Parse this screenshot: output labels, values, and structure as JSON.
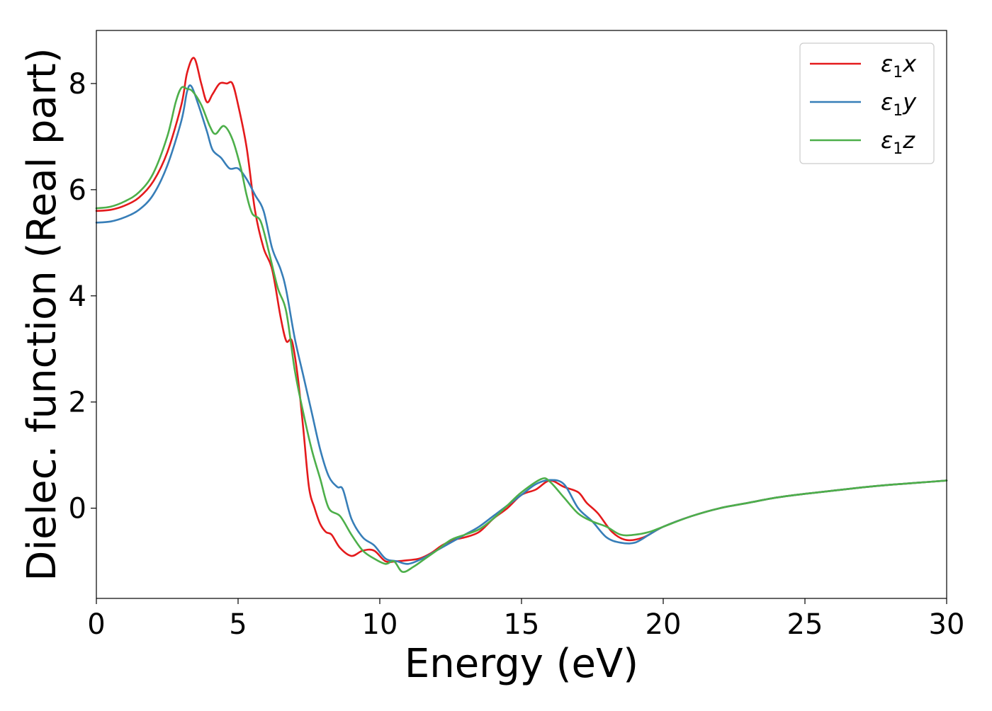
{
  "chart_data": {
    "type": "line",
    "title": "",
    "xlabel": "Energy (eV)",
    "ylabel": "Dielec. function (Real part)",
    "xlim": [
      0,
      30
    ],
    "ylim": [
      -1.7,
      9.0
    ],
    "xticks": [
      0,
      5,
      10,
      15,
      20,
      25,
      30
    ],
    "yticks": [
      0,
      2,
      4,
      6,
      8
    ],
    "xtick_labels": [
      "0",
      "5",
      "10",
      "15",
      "20",
      "25",
      "30"
    ],
    "ytick_labels": [
      "0",
      "2",
      "4",
      "6",
      "8"
    ],
    "grid": false,
    "legend_position": "top-right",
    "series": [
      {
        "name": "ε₁x",
        "legend_base": "ε",
        "legend_sub": "1",
        "legend_var": "x",
        "color": "#e41a1c",
        "points": [
          [
            0,
            5.6
          ],
          [
            0.5,
            5.62
          ],
          [
            1,
            5.7
          ],
          [
            1.5,
            5.85
          ],
          [
            2,
            6.15
          ],
          [
            2.5,
            6.7
          ],
          [
            3.0,
            7.6
          ],
          [
            3.2,
            8.2
          ],
          [
            3.45,
            8.48
          ],
          [
            3.7,
            8.0
          ],
          [
            3.9,
            7.65
          ],
          [
            4.1,
            7.8
          ],
          [
            4.35,
            8.0
          ],
          [
            4.6,
            8.0
          ],
          [
            4.8,
            8.0
          ],
          [
            5.0,
            7.6
          ],
          [
            5.3,
            6.8
          ],
          [
            5.6,
            5.6
          ],
          [
            5.9,
            4.9
          ],
          [
            6.2,
            4.5
          ],
          [
            6.5,
            3.6
          ],
          [
            6.7,
            3.15
          ],
          [
            6.9,
            3.15
          ],
          [
            7.1,
            2.5
          ],
          [
            7.3,
            1.5
          ],
          [
            7.5,
            0.4
          ],
          [
            7.7,
            0.0
          ],
          [
            7.9,
            -0.3
          ],
          [
            8.1,
            -0.45
          ],
          [
            8.3,
            -0.5
          ],
          [
            8.6,
            -0.75
          ],
          [
            9.0,
            -0.9
          ],
          [
            9.4,
            -0.8
          ],
          [
            9.8,
            -0.8
          ],
          [
            10.2,
            -1.0
          ],
          [
            10.6,
            -1.0
          ],
          [
            11.0,
            -0.98
          ],
          [
            11.4,
            -0.95
          ],
          [
            11.8,
            -0.85
          ],
          [
            12.2,
            -0.7
          ],
          [
            12.6,
            -0.6
          ],
          [
            13.0,
            -0.55
          ],
          [
            13.5,
            -0.45
          ],
          [
            14.0,
            -0.2
          ],
          [
            14.5,
            0.0
          ],
          [
            15.0,
            0.25
          ],
          [
            15.5,
            0.35
          ],
          [
            16.0,
            0.52
          ],
          [
            16.5,
            0.4
          ],
          [
            17.0,
            0.3
          ],
          [
            17.3,
            0.1
          ],
          [
            17.7,
            -0.1
          ],
          [
            18.2,
            -0.45
          ],
          [
            18.7,
            -0.6
          ],
          [
            19.3,
            -0.55
          ],
          [
            20.0,
            -0.35
          ],
          [
            21.0,
            -0.15
          ],
          [
            22.0,
            0.0
          ],
          [
            23.0,
            0.1
          ],
          [
            24.0,
            0.2
          ],
          [
            25.0,
            0.27
          ],
          [
            26.0,
            0.33
          ],
          [
            27.0,
            0.39
          ],
          [
            28.0,
            0.44
          ],
          [
            29.0,
            0.48
          ],
          [
            30.0,
            0.52
          ]
        ]
      },
      {
        "name": "ε₁y",
        "legend_base": "ε",
        "legend_sub": "1",
        "legend_var": "y",
        "color": "#377eb8",
        "points": [
          [
            0,
            5.38
          ],
          [
            0.5,
            5.4
          ],
          [
            1,
            5.48
          ],
          [
            1.5,
            5.62
          ],
          [
            2,
            5.9
          ],
          [
            2.5,
            6.45
          ],
          [
            3.0,
            7.3
          ],
          [
            3.2,
            7.85
          ],
          [
            3.35,
            7.95
          ],
          [
            3.6,
            7.6
          ],
          [
            3.9,
            7.1
          ],
          [
            4.1,
            6.75
          ],
          [
            4.4,
            6.6
          ],
          [
            4.7,
            6.4
          ],
          [
            5.0,
            6.4
          ],
          [
            5.3,
            6.2
          ],
          [
            5.6,
            5.9
          ],
          [
            5.9,
            5.6
          ],
          [
            6.2,
            4.9
          ],
          [
            6.5,
            4.5
          ],
          [
            6.7,
            4.1
          ],
          [
            7.0,
            3.2
          ],
          [
            7.3,
            2.5
          ],
          [
            7.6,
            1.8
          ],
          [
            7.9,
            1.1
          ],
          [
            8.2,
            0.6
          ],
          [
            8.5,
            0.4
          ],
          [
            8.7,
            0.35
          ],
          [
            9.0,
            -0.2
          ],
          [
            9.4,
            -0.55
          ],
          [
            9.8,
            -0.7
          ],
          [
            10.2,
            -0.95
          ],
          [
            10.6,
            -1.0
          ],
          [
            11.0,
            -1.05
          ],
          [
            11.5,
            -0.95
          ],
          [
            12.0,
            -0.8
          ],
          [
            12.5,
            -0.65
          ],
          [
            13.0,
            -0.5
          ],
          [
            13.5,
            -0.35
          ],
          [
            14.0,
            -0.15
          ],
          [
            14.5,
            0.05
          ],
          [
            15.0,
            0.25
          ],
          [
            15.5,
            0.45
          ],
          [
            16.0,
            0.53
          ],
          [
            16.5,
            0.45
          ],
          [
            17.0,
            0.0
          ],
          [
            17.5,
            -0.25
          ],
          [
            18.0,
            -0.55
          ],
          [
            18.5,
            -0.65
          ],
          [
            19.0,
            -0.65
          ],
          [
            19.5,
            -0.5
          ],
          [
            20.0,
            -0.35
          ],
          [
            21.0,
            -0.15
          ],
          [
            22.0,
            0.0
          ],
          [
            23.0,
            0.1
          ],
          [
            24.0,
            0.2
          ],
          [
            25.0,
            0.27
          ],
          [
            26.0,
            0.33
          ],
          [
            27.0,
            0.39
          ],
          [
            28.0,
            0.44
          ],
          [
            29.0,
            0.48
          ],
          [
            30.0,
            0.52
          ]
        ]
      },
      {
        "name": "ε₁z",
        "legend_base": "ε",
        "legend_sub": "1",
        "legend_var": "z",
        "color": "#4daf4a",
        "points": [
          [
            0,
            5.65
          ],
          [
            0.5,
            5.68
          ],
          [
            1,
            5.78
          ],
          [
            1.5,
            5.95
          ],
          [
            2,
            6.3
          ],
          [
            2.5,
            7.0
          ],
          [
            2.8,
            7.65
          ],
          [
            3.0,
            7.92
          ],
          [
            3.2,
            7.9
          ],
          [
            3.4,
            7.85
          ],
          [
            3.7,
            7.6
          ],
          [
            4.0,
            7.2
          ],
          [
            4.2,
            7.05
          ],
          [
            4.5,
            7.2
          ],
          [
            4.8,
            6.95
          ],
          [
            5.1,
            6.4
          ],
          [
            5.3,
            5.9
          ],
          [
            5.5,
            5.55
          ],
          [
            5.8,
            5.4
          ],
          [
            6.1,
            4.8
          ],
          [
            6.4,
            4.15
          ],
          [
            6.7,
            3.7
          ],
          [
            7.0,
            2.6
          ],
          [
            7.3,
            1.8
          ],
          [
            7.6,
            1.1
          ],
          [
            7.9,
            0.55
          ],
          [
            8.2,
            0.0
          ],
          [
            8.6,
            -0.15
          ],
          [
            9.0,
            -0.5
          ],
          [
            9.4,
            -0.8
          ],
          [
            9.8,
            -0.95
          ],
          [
            10.2,
            -1.05
          ],
          [
            10.5,
            -1.0
          ],
          [
            10.8,
            -1.2
          ],
          [
            11.2,
            -1.1
          ],
          [
            11.6,
            -0.95
          ],
          [
            12.0,
            -0.8
          ],
          [
            12.5,
            -0.6
          ],
          [
            13.0,
            -0.5
          ],
          [
            13.5,
            -0.4
          ],
          [
            14.0,
            -0.2
          ],
          [
            14.5,
            0.05
          ],
          [
            15.0,
            0.3
          ],
          [
            15.7,
            0.55
          ],
          [
            16.0,
            0.5
          ],
          [
            16.5,
            0.2
          ],
          [
            17.0,
            -0.1
          ],
          [
            17.5,
            -0.25
          ],
          [
            18.0,
            -0.35
          ],
          [
            18.5,
            -0.5
          ],
          [
            19.0,
            -0.5
          ],
          [
            19.5,
            -0.45
          ],
          [
            20.0,
            -0.35
          ],
          [
            21.0,
            -0.15
          ],
          [
            22.0,
            0.0
          ],
          [
            23.0,
            0.1
          ],
          [
            24.0,
            0.2
          ],
          [
            25.0,
            0.27
          ],
          [
            26.0,
            0.33
          ],
          [
            27.0,
            0.39
          ],
          [
            28.0,
            0.44
          ],
          [
            29.0,
            0.48
          ],
          [
            30.0,
            0.52
          ]
        ]
      }
    ]
  }
}
